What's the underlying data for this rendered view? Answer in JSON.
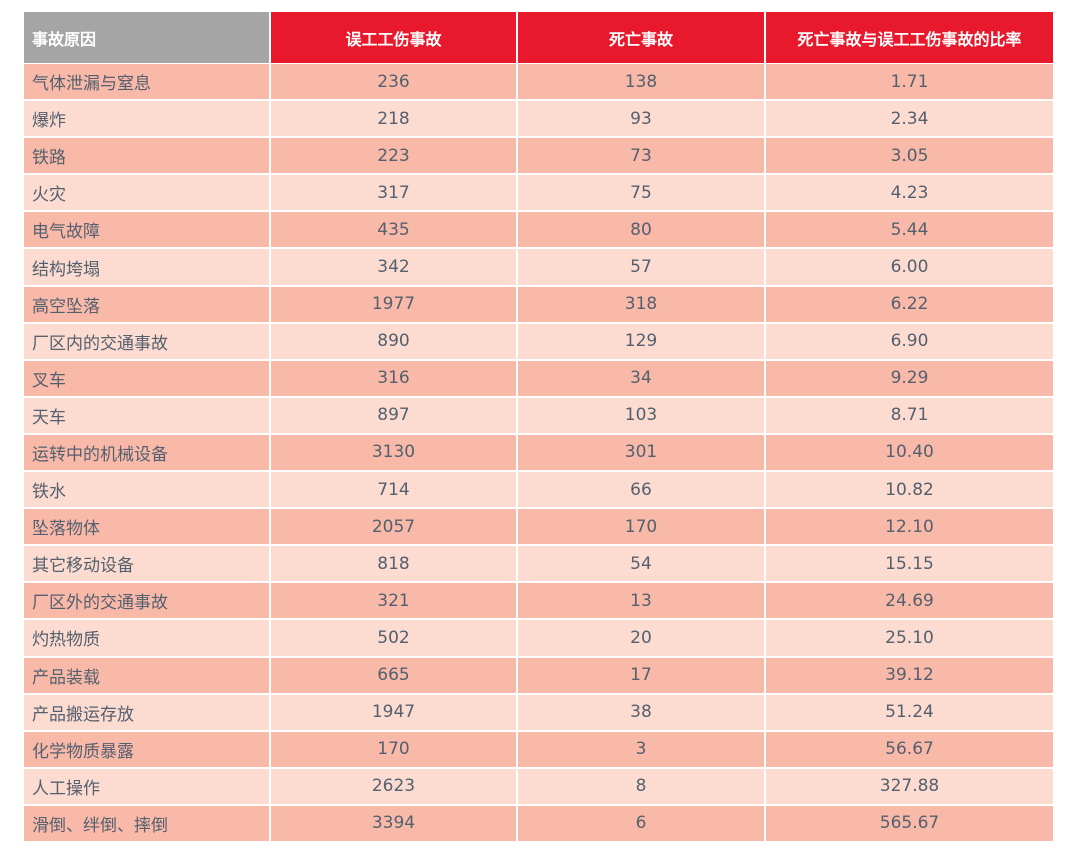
{
  "table": {
    "header": [
      "事故原因",
      "误工工伤事故",
      "死亡事故",
      "死亡事故与误工工伤事故的比率"
    ],
    "rows": [
      [
        "气体泄漏与窒息",
        "236",
        "138",
        "1.71"
      ],
      [
        "爆炸",
        "218",
        "93",
        "2.34"
      ],
      [
        "铁路",
        "223",
        "73",
        "3.05"
      ],
      [
        "火灾",
        "317",
        "75",
        "4.23"
      ],
      [
        "电气故障",
        "435",
        "80",
        "5.44"
      ],
      [
        "结构垮塌",
        "342",
        "57",
        "6.00"
      ],
      [
        "高空坠落",
        "1977",
        "318",
        "6.22"
      ],
      [
        "厂区内的交通事故",
        "890",
        "129",
        "6.90"
      ],
      [
        "叉车",
        "316",
        "34",
        "9.29"
      ],
      [
        "天车",
        "897",
        "103",
        "8.71"
      ],
      [
        "运转中的机械设备",
        "3130",
        "301",
        "10.40"
      ],
      [
        "铁水",
        "714",
        "66",
        "10.82"
      ],
      [
        "坠落物体",
        "2057",
        "170",
        "12.10"
      ],
      [
        "其它移动设备",
        "818",
        "54",
        "15.15"
      ],
      [
        "厂区外的交通事故",
        "321",
        "13",
        "24.69"
      ],
      [
        "灼热物质",
        "502",
        "20",
        "25.10"
      ],
      [
        "产品装载",
        "665",
        "17",
        "39.12"
      ],
      [
        "产品搬运存放",
        "1947",
        "38",
        "51.24"
      ],
      [
        "化学物质暴露",
        "170",
        "3",
        "56.67"
      ],
      [
        "人工操作",
        "2623",
        "8",
        "327.88"
      ],
      [
        "滑倒、绊倒、摔倒",
        "3394",
        "6",
        "565.67"
      ]
    ]
  }
}
